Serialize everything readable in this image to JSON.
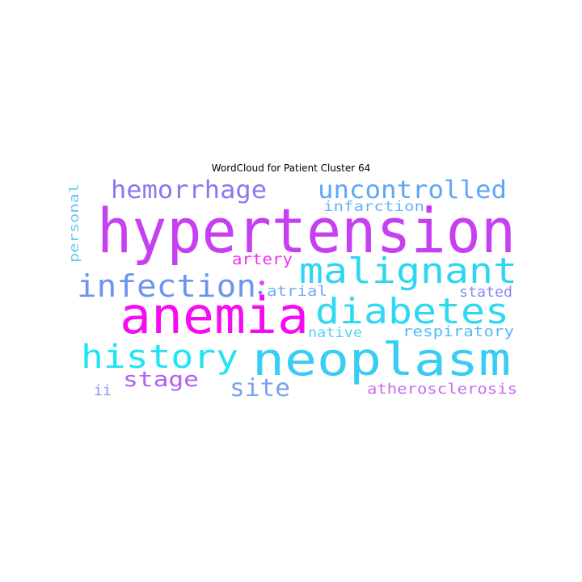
{
  "title": "WordCloud for Patient Cluster 64",
  "words": [
    {
      "text": "hypertension",
      "color": "#c640f2"
    },
    {
      "text": "neoplasm",
      "color": "#38cdf5"
    },
    {
      "text": "anemia",
      "color": "#f50cf2"
    },
    {
      "text": "malignant",
      "color": "#2fd6f2"
    },
    {
      "text": "diabetes",
      "color": "#2fd9f2"
    },
    {
      "text": "infection",
      "color": "#6d94f0"
    },
    {
      "text": "history",
      "color": "#1ee4f4"
    },
    {
      "text": "hemorrhage",
      "color": "#8a78f0"
    },
    {
      "text": "uncontrolled",
      "color": "#5fa6f6"
    },
    {
      "text": "site",
      "color": "#7aa2f2"
    },
    {
      "text": "stage",
      "color": "#b260ee"
    },
    {
      "text": "infarction",
      "color": "#67b4f4"
    },
    {
      "text": "artery",
      "color": "#f030f0"
    },
    {
      "text": "personal",
      "color": "#68c9f5"
    },
    {
      "text": "atrial",
      "color": "#7aa9f2"
    },
    {
      "text": "stated",
      "color": "#8a88f0"
    },
    {
      "text": "native",
      "color": "#58d2f5"
    },
    {
      "text": "respiratory",
      "color": "#52bdf4"
    },
    {
      "text": "atherosclerosis",
      "color": "#c86cf0"
    },
    {
      "text": "ii",
      "color": "#7a9ce8"
    }
  ],
  "dots": [
    {
      "color": "#d030f0"
    },
    {
      "color": "#e040f0"
    },
    {
      "color": "#7a90f0"
    }
  ]
}
